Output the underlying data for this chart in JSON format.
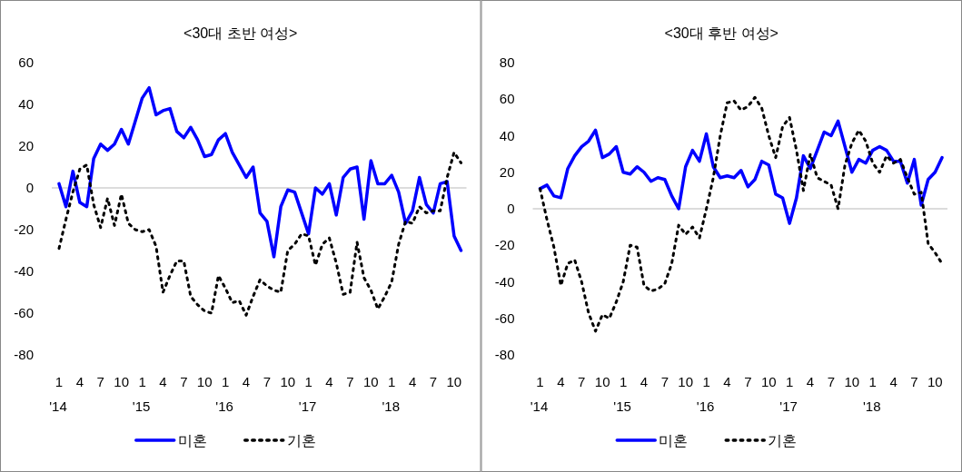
{
  "chart_data": [
    {
      "type": "line",
      "title": "<30대 초반 여성>",
      "ylim": [
        -80,
        60
      ],
      "yticks": [
        -80,
        -60,
        -40,
        -20,
        0,
        20,
        40,
        60
      ],
      "ref_lines": [
        {
          "axis": "y",
          "value": 0,
          "color": "#d0d0d0"
        }
      ],
      "legend": "bottom",
      "categories": [
        "1\n'14",
        null,
        null,
        "4",
        null,
        null,
        "7",
        null,
        null,
        "10",
        null,
        null,
        "1\n'15",
        null,
        null,
        "4",
        null,
        null,
        "7",
        null,
        null,
        "10",
        null,
        null,
        "1\n'16",
        null,
        null,
        "4",
        null,
        null,
        "7",
        null,
        null,
        "10",
        null,
        null,
        "1\n'17",
        null,
        null,
        "4",
        null,
        null,
        "7",
        null,
        null,
        "10",
        null,
        null,
        "1\n'18",
        null,
        null,
        "4",
        null,
        null,
        "7",
        null,
        null,
        "10",
        null
      ],
      "series": [
        {
          "name": "미혼",
          "color": "#0000ff",
          "line_style": "solid",
          "values": [
            2,
            -9,
            8,
            -7,
            -9,
            14,
            21,
            18,
            21,
            28,
            21,
            32,
            43,
            48,
            35,
            37,
            38,
            27,
            24,
            29,
            23,
            15,
            16,
            23,
            26,
            17,
            11,
            5,
            10,
            -12,
            -16,
            -33,
            -9,
            -1,
            -2,
            -12,
            -22,
            0,
            -3,
            2,
            -13,
            5,
            9,
            10,
            -15,
            13,
            2,
            2,
            6,
            -2,
            -17,
            -11,
            5,
            -8,
            -12,
            2,
            3,
            -23,
            -30
          ]
        },
        {
          "name": "기혼",
          "color": "#000000",
          "line_style": "dotted",
          "values": [
            -29,
            -15,
            -2,
            9,
            11,
            -8,
            -19,
            -5,
            -18,
            -3,
            -17,
            -20,
            -21,
            -20,
            -28,
            -50,
            -42,
            -35,
            -35,
            -52,
            -56,
            -59,
            -60,
            -42,
            -48,
            -55,
            -54,
            -61,
            -52,
            -44,
            -47,
            -49,
            -50,
            -30,
            -27,
            -22,
            -23,
            -37,
            -27,
            -24,
            -36,
            -51,
            -50,
            -26,
            -43,
            -49,
            -58,
            -52,
            -45,
            -27,
            -16,
            -17,
            -9,
            -12,
            -11,
            -11,
            5,
            17,
            12
          ]
        }
      ]
    },
    {
      "type": "line",
      "title": "<30대 후반 여성>",
      "ylim": [
        -80,
        80
      ],
      "yticks": [
        -80,
        -60,
        -40,
        -20,
        0,
        20,
        40,
        60,
        80
      ],
      "ref_lines": [
        {
          "axis": "y",
          "value": 0,
          "color": "#d0d0d0"
        }
      ],
      "legend": "bottom",
      "categories": [
        "1\n'14",
        null,
        null,
        "4",
        null,
        null,
        "7",
        null,
        null,
        "10",
        null,
        null,
        "1\n'15",
        null,
        null,
        "4",
        null,
        null,
        "7",
        null,
        null,
        "10",
        null,
        null,
        "1\n'16",
        null,
        null,
        "4",
        null,
        null,
        "7",
        null,
        null,
        "10",
        null,
        null,
        "1\n'17",
        null,
        null,
        "4",
        null,
        null,
        "7",
        null,
        null,
        "10",
        null,
        null,
        "1\n'18",
        null,
        null,
        "4",
        null,
        null,
        "7",
        null,
        null,
        "10",
        null
      ],
      "series": [
        {
          "name": "미혼",
          "color": "#0000ff",
          "line_style": "solid",
          "values": [
            11,
            13,
            7,
            6,
            22,
            29,
            34,
            37,
            43,
            28,
            30,
            34,
            20,
            19,
            23,
            20,
            15,
            17,
            16,
            7,
            0,
            23,
            32,
            26,
            41,
            23,
            17,
            18,
            17,
            21,
            12,
            16,
            26,
            24,
            8,
            6,
            -8,
            6,
            29,
            22,
            32,
            42,
            40,
            48,
            34,
            20,
            27,
            25,
            32,
            34,
            32,
            26,
            26,
            14,
            27,
            2,
            16,
            20,
            28
          ]
        },
        {
          "name": "기혼",
          "color": "#000000",
          "line_style": "dotted",
          "values": [
            11,
            -6,
            -21,
            -42,
            -30,
            -28,
            -40,
            -57,
            -67,
            -58,
            -60,
            -51,
            -40,
            -20,
            -21,
            -42,
            -45,
            -44,
            -41,
            -30,
            -9,
            -14,
            -10,
            -16,
            0,
            17,
            40,
            58,
            59,
            54,
            56,
            61,
            55,
            40,
            28,
            45,
            50,
            32,
            10,
            30,
            17,
            15,
            13,
            0,
            24,
            36,
            43,
            37,
            25,
            20,
            29,
            25,
            27,
            17,
            8,
            9,
            -19,
            -24,
            -30
          ]
        }
      ]
    }
  ]
}
